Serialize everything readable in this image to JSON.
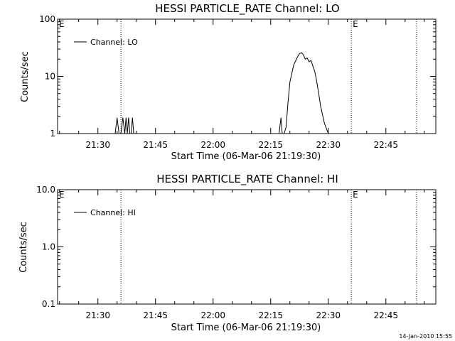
{
  "footer": {
    "timestamp": "14-Jan-2010 15:55"
  },
  "chart_data": [
    {
      "type": "line",
      "title": "HESSI PARTICLE_RATE Channel: LO",
      "xlabel": "Start Time (06-Mar-06 21:19:30)",
      "ylabel": "Counts/sec",
      "y_scale": "log",
      "ylim": [
        1,
        100
      ],
      "xlim": [
        "21:19:30",
        "22:58:00"
      ],
      "x_ticks": [
        "21:30",
        "21:45",
        "22:00",
        "22:15",
        "22:30",
        "22:45"
      ],
      "y_ticks": [
        "1",
        "10",
        "100"
      ],
      "legend": {
        "position": "top-left",
        "entries": [
          "Channel: LO"
        ]
      },
      "vlines": [
        {
          "x": "21:36:00",
          "label": ""
        },
        {
          "x": "22:36:00",
          "label": "E"
        },
        {
          "x": "22:53:00",
          "label": ""
        }
      ],
      "left_marker": "E",
      "series": [
        {
          "name": "Channel: LO",
          "x": [
            "21:34:30",
            "21:35:00",
            "21:35:30",
            "21:36:00",
            "21:36:30",
            "21:37:00",
            "21:37:20",
            "21:37:40",
            "21:38:00",
            "21:38:20",
            "21:38:40",
            "21:39:00",
            "21:39:20",
            "21:39:40",
            "21:40:00",
            "22:17:10",
            "22:17:40",
            "22:18:00",
            "22:18:30",
            "22:19:00",
            "22:19:30",
            "22:20:00",
            "22:21:00",
            "22:22:00",
            "22:22:30",
            "22:23:00",
            "22:23:30",
            "22:24:00",
            "22:24:30",
            "22:25:00",
            "22:25:30",
            "22:26:00",
            "22:26:30",
            "22:27:00",
            "22:27:30",
            "22:28:00",
            "22:29:00",
            "22:30:00"
          ],
          "values": [
            1,
            1.9,
            1,
            1,
            1.9,
            1,
            1.9,
            1,
            1.9,
            1,
            1,
            1.9,
            1,
            1,
            1,
            1,
            1.9,
            1,
            1,
            1.3,
            3.5,
            8,
            16,
            22,
            25,
            26,
            24,
            20,
            21,
            18,
            19,
            15,
            12,
            8,
            5,
            3,
            1.5,
            1
          ]
        }
      ]
    },
    {
      "type": "line",
      "title": "HESSI PARTICLE_RATE Channel: HI",
      "xlabel": "Start Time (06-Mar-06 21:19:30)",
      "ylabel": "Counts/sec",
      "y_scale": "log",
      "ylim": [
        0.1,
        10
      ],
      "xlim": [
        "21:19:30",
        "22:58:00"
      ],
      "x_ticks": [
        "21:30",
        "21:45",
        "22:00",
        "22:15",
        "22:30",
        "22:45"
      ],
      "y_ticks": [
        "0.1",
        "1.0",
        "10.0"
      ],
      "legend": {
        "position": "top-left",
        "entries": [
          "Channel: HI"
        ]
      },
      "vlines": [
        {
          "x": "21:36:00",
          "label": ""
        },
        {
          "x": "22:36:00",
          "label": "E"
        },
        {
          "x": "22:53:00",
          "label": ""
        }
      ],
      "left_marker": "E",
      "series": [
        {
          "name": "Channel: HI",
          "x": [],
          "values": []
        }
      ]
    }
  ]
}
